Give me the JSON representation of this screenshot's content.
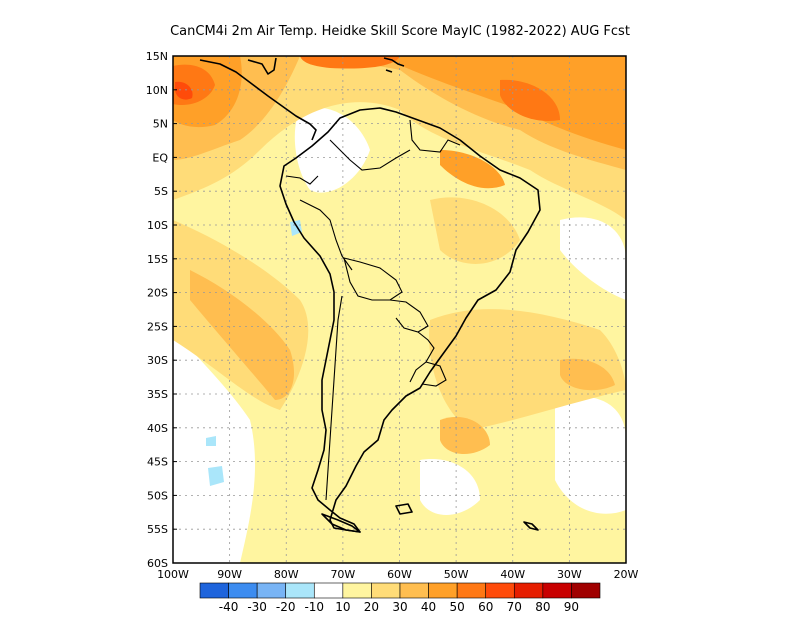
{
  "title": "CanCM4i  2m Air Temp. Heidke Skill Score MayIC (1982-2022) AUG Fcst",
  "map": {
    "lat_labels": [
      "15N",
      "10N",
      "5N",
      "EQ",
      "5S",
      "10S",
      "15S",
      "20S",
      "25S",
      "30S",
      "35S",
      "40S",
      "45S",
      "50S",
      "55S",
      "60S"
    ],
    "lon_labels": [
      "100W",
      "90W",
      "80W",
      "70W",
      "60W",
      "50W",
      "40W",
      "30W",
      "20W"
    ],
    "lat_range": [
      -60,
      15
    ],
    "lon_range": [
      -100,
      -20
    ],
    "grid": "dotted",
    "region": "South America"
  },
  "colorbar": {
    "labels": [
      "-40",
      "-30",
      "-20",
      "-10",
      "10",
      "20",
      "30",
      "40",
      "50",
      "60",
      "70",
      "80",
      "90"
    ],
    "colors": [
      "#1e64dc",
      "#3c8cf0",
      "#78b4f5",
      "#aae6fa",
      "#ffffff",
      "#fff5a0",
      "#ffdc78",
      "#ffbe50",
      "#ffa028",
      "#ff7814",
      "#ff4b0a",
      "#e61e00",
      "#c80000",
      "#a00000"
    ]
  },
  "chart_data": {
    "type": "heatmap",
    "title": "CanCM4i  2m Air Temp. Heidke Skill Score MayIC (1982-2022) AUG Fcst",
    "x_range": [
      -100,
      -20
    ],
    "y_range": [
      -60,
      15
    ],
    "levels": [
      -40,
      -30,
      -20,
      -10,
      10,
      20,
      30,
      40,
      50,
      60,
      70,
      80,
      90
    ],
    "regions": [
      {
        "area": "Caribbean / north tropical Atlantic",
        "value_range": [
          40,
          60
        ]
      },
      {
        "area": "Northeast Brazil coast",
        "value_range": [
          40,
          50
        ]
      },
      {
        "area": "Eastern Pacific off Central America",
        "value_range": [
          50,
          60
        ]
      },
      {
        "area": "Southeast Pacific off Chile/Peru",
        "value_range": [
          30,
          40
        ]
      },
      {
        "area": "South Atlantic",
        "value_range": [
          20,
          40
        ]
      },
      {
        "area": "Interior South America",
        "value_range": [
          10,
          30
        ]
      },
      {
        "area": "Southern Pacific / Southern Ocean",
        "value_range": [
          -10,
          20
        ]
      }
    ]
  }
}
